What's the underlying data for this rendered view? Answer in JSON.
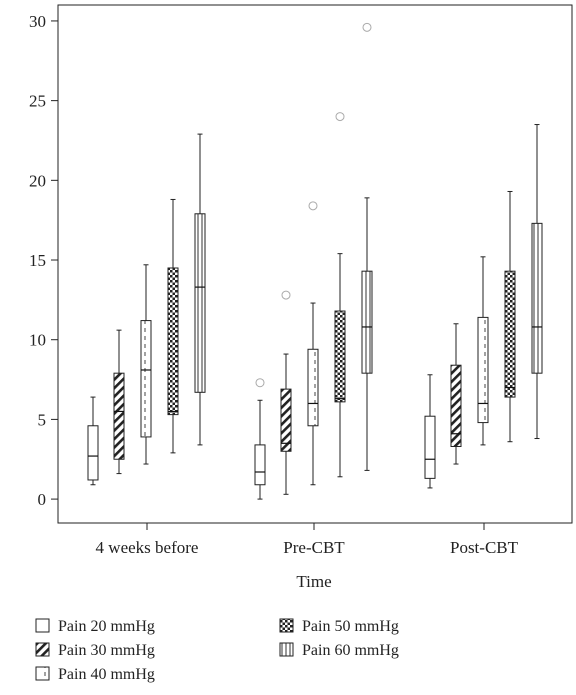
{
  "chart_data": {
    "type": "box",
    "xlabel": "Time",
    "ylabel": "",
    "ylim": [
      -1.5,
      31
    ],
    "yticks": [
      0,
      5,
      10,
      15,
      20,
      25,
      30
    ],
    "categories": [
      "4 weeks before",
      "Pre-CBT",
      "Post-CBT"
    ],
    "grid": false,
    "legend_position": "bottom",
    "series": [
      {
        "name": "Pain 20 mmHg",
        "pattern": "none",
        "boxes": [
          {
            "min": 0.9,
            "q1": 1.2,
            "median": 2.7,
            "q3": 4.6,
            "max": 6.4,
            "outliers": []
          },
          {
            "min": 0.0,
            "q1": 0.9,
            "median": 1.7,
            "q3": 3.4,
            "max": 6.2,
            "outliers": [
              7.3
            ]
          },
          {
            "min": 0.7,
            "q1": 1.3,
            "median": 2.5,
            "q3": 5.2,
            "max": 7.8,
            "outliers": []
          }
        ]
      },
      {
        "name": "Pain 30 mmHg",
        "pattern": "diagonal",
        "boxes": [
          {
            "min": 1.6,
            "q1": 2.5,
            "median": 5.5,
            "q3": 7.9,
            "max": 10.6,
            "outliers": []
          },
          {
            "min": 0.3,
            "q1": 3.0,
            "median": 3.5,
            "q3": 6.9,
            "max": 9.1,
            "outliers": [
              12.8
            ]
          },
          {
            "min": 2.2,
            "q1": 3.3,
            "median": 4.1,
            "q3": 8.4,
            "max": 11.0,
            "outliers": []
          }
        ]
      },
      {
        "name": "Pain 40 mmHg",
        "pattern": "dashed",
        "boxes": [
          {
            "min": 2.2,
            "q1": 3.9,
            "median": 8.1,
            "q3": 11.2,
            "max": 14.7,
            "outliers": []
          },
          {
            "min": 0.9,
            "q1": 4.6,
            "median": 6.0,
            "q3": 9.4,
            "max": 12.3,
            "outliers": [
              18.4
            ]
          },
          {
            "min": 3.4,
            "q1": 4.8,
            "median": 6.0,
            "q3": 11.4,
            "max": 15.2,
            "outliers": []
          }
        ]
      },
      {
        "name": "Pain 50 mmHg",
        "pattern": "checker",
        "boxes": [
          {
            "min": 2.9,
            "q1": 5.3,
            "median": 5.5,
            "q3": 14.5,
            "max": 18.8,
            "outliers": []
          },
          {
            "min": 1.4,
            "q1": 6.1,
            "median": 6.3,
            "q3": 11.8,
            "max": 15.4,
            "outliers": [
              24.0
            ]
          },
          {
            "min": 3.6,
            "q1": 6.4,
            "median": 7.0,
            "q3": 14.3,
            "max": 19.3,
            "outliers": []
          }
        ]
      },
      {
        "name": "Pain 60 mmHg",
        "pattern": "vertical",
        "boxes": [
          {
            "min": 3.4,
            "q1": 6.7,
            "median": 13.3,
            "q3": 17.9,
            "max": 22.9,
            "outliers": []
          },
          {
            "min": 1.8,
            "q1": 7.9,
            "median": 10.8,
            "q3": 14.3,
            "max": 18.9,
            "outliers": [
              29.6
            ]
          },
          {
            "min": 3.8,
            "q1": 7.9,
            "median": 10.8,
            "q3": 17.3,
            "max": 23.5,
            "outliers": []
          }
        ]
      }
    ]
  }
}
